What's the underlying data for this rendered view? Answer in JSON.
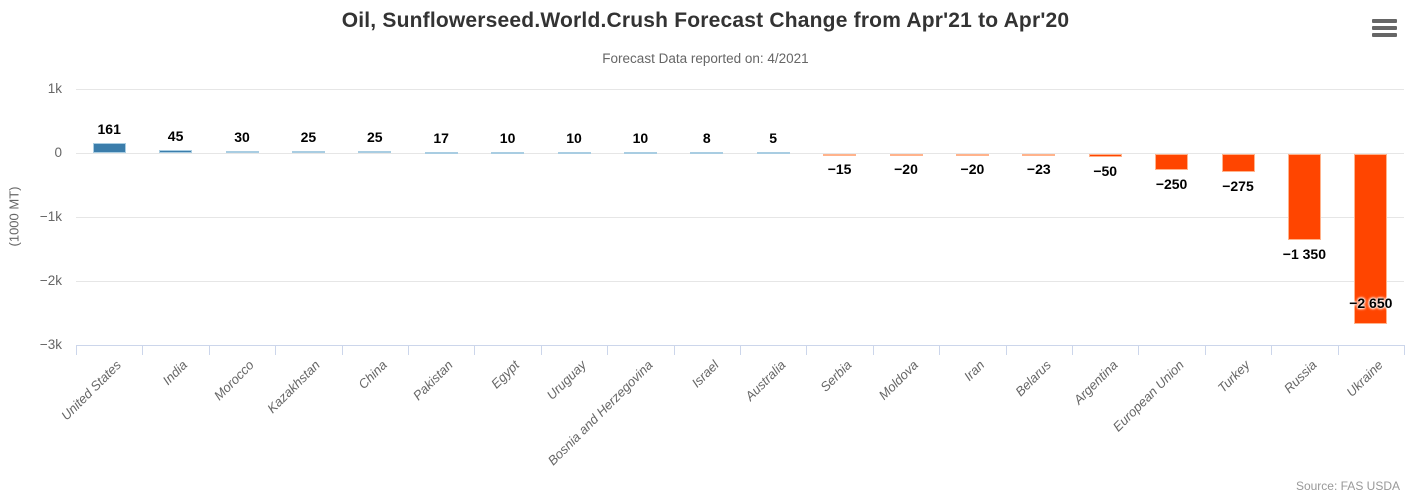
{
  "header": {
    "menu_icon": "hamburger-icon"
  },
  "footer": {
    "source": "Source: FAS USDA"
  },
  "chart_data": {
    "type": "bar",
    "title": "Oil, Sunflowerseed.World.Crush Forecast Change from Apr'21 to Apr'20",
    "subtitle": "Forecast Data reported on: 4/2021",
    "categories": [
      "United States",
      "India",
      "Morocco",
      "Kazakhstan",
      "China",
      "Pakistan",
      "Egypt",
      "Uruguay",
      "Bosnia and Herzegovina",
      "Israel",
      "Australia",
      "Serbia",
      "Moldova",
      "Iran",
      "Belarus",
      "Argentina",
      "European Union",
      "Turkey",
      "Russia",
      "Ukraine"
    ],
    "values": [
      161,
      45,
      30,
      25,
      25,
      17,
      10,
      10,
      10,
      8,
      5,
      -15,
      -20,
      -20,
      -23,
      -50,
      -250,
      -275,
      -1350,
      -2650
    ],
    "value_labels": [
      "161",
      "45",
      "30",
      "25",
      "25",
      "17",
      "10",
      "10",
      "10",
      "8",
      "5",
      "−15",
      "−20",
      "−20",
      "−23",
      "−50",
      "−250",
      "−275",
      "−1 350",
      "−2 650"
    ],
    "xlabel": "",
    "ylabel": "(1000 MT)",
    "ylim": [
      -3000,
      1000
    ],
    "yticks": [
      {
        "value": 1000,
        "label": "1k"
      },
      {
        "value": 0,
        "label": "0"
      },
      {
        "value": -1000,
        "label": "−1k"
      },
      {
        "value": -2000,
        "label": "−2k"
      },
      {
        "value": -3000,
        "label": "−3k"
      }
    ],
    "grid": "horizontal",
    "legend": "none",
    "colors": {
      "positive": "#3b7dab",
      "positive_border": "#a9cde2",
      "negative": "#ff4500",
      "negative_border": "#ffb38c",
      "gridline": "#e6e6e6",
      "axis_line": "#ccd6eb",
      "title_text": "#333333",
      "subtitle_text": "#666666",
      "axis_text": "#666666",
      "credits_text": "#999999"
    }
  }
}
